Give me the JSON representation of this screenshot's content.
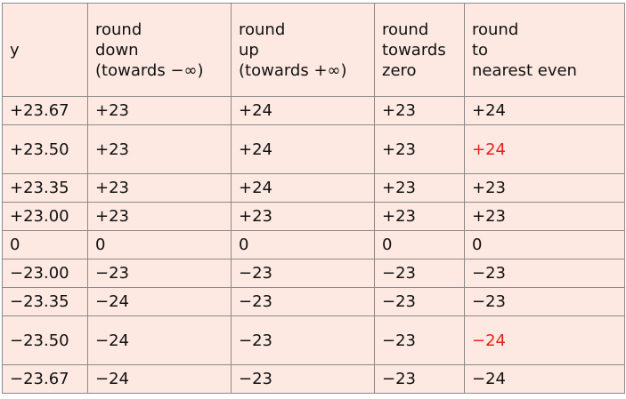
{
  "table": {
    "headers": [
      [
        "y"
      ],
      [
        "round",
        "down",
        "(towards −∞)"
      ],
      [
        "round",
        "up",
        "(towards +∞)"
      ],
      [
        "round",
        "towards",
        "zero"
      ],
      [
        "round",
        "to",
        "nearest even"
      ]
    ],
    "rows": [
      [
        "+23.67",
        "+23",
        "+24",
        "+23",
        "+24"
      ],
      [
        "+23.50",
        "+23",
        "+24",
        "+23",
        "+24"
      ],
      [
        "+23.35",
        "+23",
        "+24",
        "+23",
        "+23"
      ],
      [
        "+23.00",
        "+23",
        "+23",
        "+23",
        "+23"
      ],
      [
        "0",
        "0",
        "0",
        "0",
        "0"
      ],
      [
        "−23.00",
        "−23",
        "−23",
        "−23",
        "−23"
      ],
      [
        "−23.35",
        "−24",
        "−23",
        "−23",
        "−23"
      ],
      [
        "−23.50",
        "−24",
        "−23",
        "−23",
        "−24"
      ],
      [
        "−23.67",
        "−24",
        "−23",
        "−23",
        "−24"
      ]
    ]
  },
  "colors": {
    "cell_background": "#fde9e1",
    "border": "#8a8a8a",
    "text": "#111111",
    "highlight": "#e8201a"
  }
}
